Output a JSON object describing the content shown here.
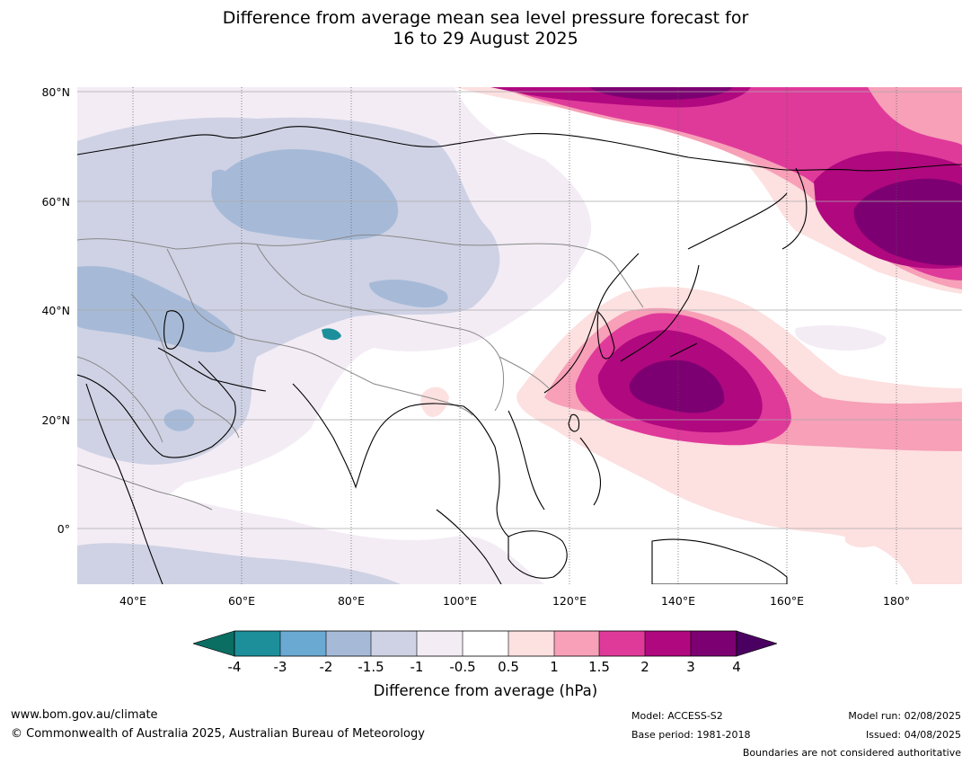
{
  "title_line1": "Difference from average mean sea level pressure forecast for",
  "title_line2": "16 to 29 August 2025",
  "axes": {
    "lat_labels": [
      "80°N",
      "60°N",
      "40°N",
      "20°N",
      "0°"
    ],
    "lon_labels": [
      "40°E",
      "60°E",
      "80°E",
      "100°E",
      "120°E",
      "140°E",
      "160°E",
      "180°"
    ]
  },
  "colorbar": {
    "title": "Difference from average (hPa)",
    "tick_labels": [
      "-4",
      "-3",
      "-2",
      "-1.5",
      "-1",
      "-0.5",
      "0.5",
      "1",
      "1.5",
      "2",
      "3",
      "4"
    ],
    "colors": {
      "below_-4": "#0b6e63",
      "-4_-3": "#1c8f9b",
      "-3_-2": "#6aa9d2",
      "-2_-1.5": "#a6bad8",
      "-1.5_-1": "#cfd2e4",
      "-1_-0.5": "#f3ecf5",
      "-0.5_0.5": "#ffffff",
      "0.5_1": "#fde0e0",
      "1_1.5": "#f7a0b8",
      "1.5_2": "#df3a9a",
      "2_3": "#b0087f",
      "3_4": "#7d0072",
      "above_4": "#4a0060"
    }
  },
  "footer": {
    "website": "www.bom.gov.au/climate",
    "copyright": "© Commonwealth of Australia 2025, Australian Bureau of Meteorology",
    "model": "Model: ACCESS-S2",
    "base_period": "Base period: 1981-2018",
    "model_run": "Model run: 02/08/2025",
    "issued": "Issued: 04/08/2025",
    "boundaries_note": "Boundaries are not considered authoritative"
  }
}
